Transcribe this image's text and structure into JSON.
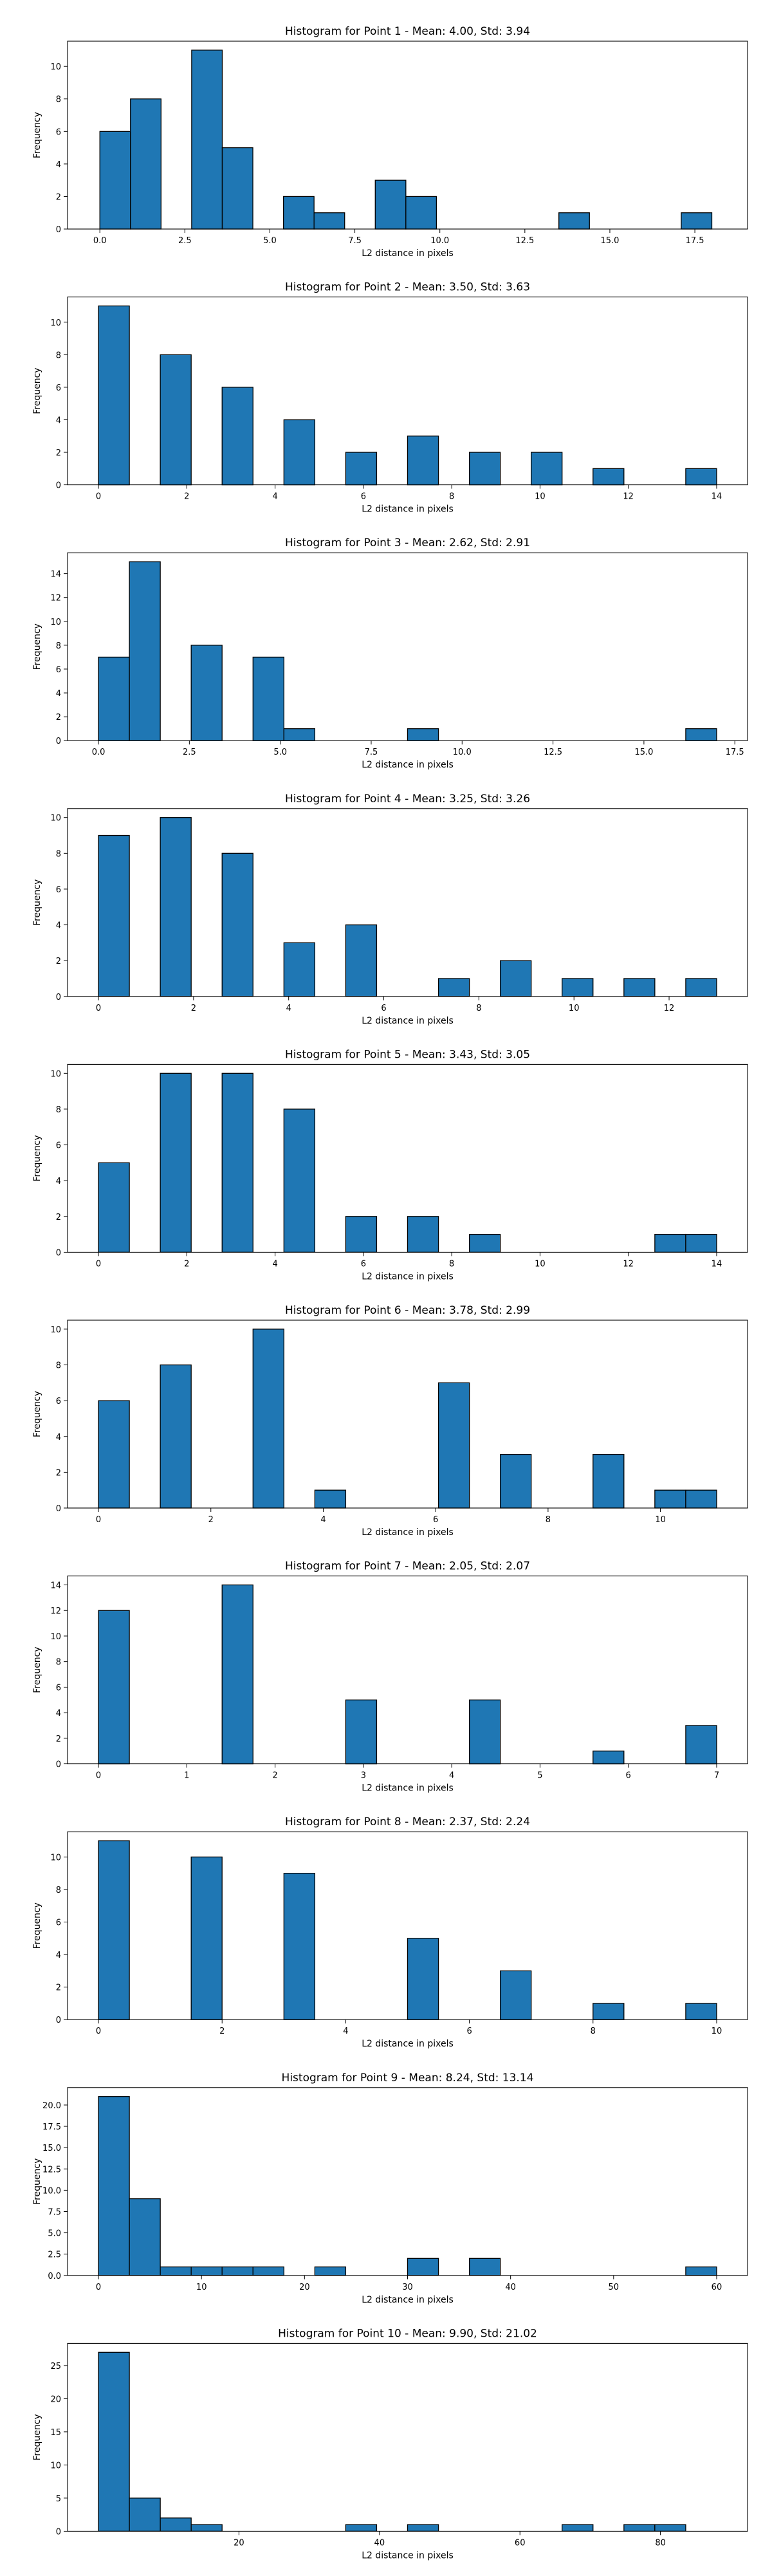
{
  "chart_data": [
    {
      "type": "bar",
      "title": "Histogram for Point 1 - Mean: 4.00, Std: 3.94",
      "xlabel": "L2 distance in pixels",
      "ylabel": "Frequency",
      "xlim": [
        -0.95,
        19.05
      ],
      "ylim": [
        0,
        11.55
      ],
      "xticks": [
        0,
        2.5,
        5,
        7.5,
        10,
        12.5,
        15,
        17.5
      ],
      "xtick_labels": [
        "0.0",
        "2.5",
        "5.0",
        "7.5",
        "10.0",
        "12.5",
        "15.0",
        "17.5"
      ],
      "yticks": [
        0,
        2,
        4,
        6,
        8,
        10
      ],
      "bin_edges": [
        0,
        0.9,
        1.8,
        2.7,
        3.6,
        4.5,
        5.4,
        6.3,
        7.2,
        8.1,
        9.0,
        9.9,
        10.8,
        11.7,
        12.6,
        13.5,
        14.4,
        15.3,
        16.2,
        17.1,
        18.0
      ],
      "counts": [
        6,
        8,
        0,
        11,
        5,
        0,
        2,
        1,
        0,
        3,
        2,
        0,
        0,
        0,
        0,
        1,
        0,
        0,
        0,
        1
      ]
    },
    {
      "type": "bar",
      "title": "Histogram for Point 2 - Mean: 3.50, Std: 3.63",
      "xlabel": "L2 distance in pixels",
      "ylabel": "Frequency",
      "xlim": [
        -0.7,
        14.7
      ],
      "ylim": [
        0,
        11.55
      ],
      "xticks": [
        0,
        2,
        4,
        6,
        8,
        10,
        12,
        14
      ],
      "xtick_labels": [
        "0",
        "2",
        "4",
        "6",
        "8",
        "10",
        "12",
        "14"
      ],
      "yticks": [
        0,
        2,
        4,
        6,
        8,
        10
      ],
      "bin_edges": [
        0,
        0.7,
        1.4,
        2.1,
        2.8,
        3.5,
        4.2,
        4.9,
        5.6,
        6.3,
        7.0,
        7.7,
        8.4,
        9.1,
        9.8,
        10.5,
        11.2,
        11.9,
        12.6,
        13.3,
        14.0
      ],
      "counts": [
        11,
        0,
        8,
        0,
        6,
        0,
        4,
        0,
        2,
        0,
        3,
        0,
        2,
        0,
        2,
        0,
        1,
        0,
        0,
        1
      ]
    },
    {
      "type": "bar",
      "title": "Histogram for Point 3 - Mean: 2.62, Std: 2.91",
      "xlabel": "L2 distance in pixels",
      "ylabel": "Frequency",
      "xlim": [
        -0.85,
        17.85
      ],
      "ylim": [
        0,
        15.75
      ],
      "xticks": [
        0,
        2.5,
        5,
        7.5,
        10,
        12.5,
        15,
        17.5
      ],
      "xtick_labels": [
        "0.0",
        "2.5",
        "5.0",
        "7.5",
        "10.0",
        "12.5",
        "15.0",
        "17.5"
      ],
      "yticks": [
        0,
        2,
        4,
        6,
        8,
        10,
        12,
        14
      ],
      "bin_edges": [
        0,
        0.85,
        1.7,
        2.55,
        3.4,
        4.25,
        5.1,
        5.95,
        6.8,
        7.65,
        8.5,
        9.35,
        10.2,
        11.05,
        11.9,
        12.75,
        13.6,
        14.45,
        15.3,
        16.15,
        17.0
      ],
      "counts": [
        7,
        15,
        0,
        8,
        0,
        7,
        1,
        0,
        0,
        0,
        1,
        0,
        0,
        0,
        0,
        0,
        0,
        0,
        0,
        1
      ]
    },
    {
      "type": "bar",
      "title": "Histogram for Point 4 - Mean: 3.25, Std: 3.26",
      "xlabel": "L2 distance in pixels",
      "ylabel": "Frequency",
      "xlim": [
        -0.65,
        13.65
      ],
      "ylim": [
        0,
        10.5
      ],
      "xticks": [
        0,
        2,
        4,
        6,
        8,
        10,
        12
      ],
      "xtick_labels": [
        "0",
        "2",
        "4",
        "6",
        "8",
        "10",
        "12"
      ],
      "yticks": [
        0,
        2,
        4,
        6,
        8,
        10
      ],
      "bin_edges": [
        0,
        0.65,
        1.3,
        1.95,
        2.6,
        3.25,
        3.9,
        4.55,
        5.2,
        5.85,
        6.5,
        7.15,
        7.8,
        8.45,
        9.1,
        9.75,
        10.4,
        11.05,
        11.7,
        12.35,
        13.0
      ],
      "counts": [
        9,
        0,
        10,
        0,
        8,
        0,
        3,
        0,
        4,
        0,
        0,
        1,
        0,
        2,
        0,
        1,
        0,
        1,
        0,
        1
      ]
    },
    {
      "type": "bar",
      "title": "Histogram for Point 5 - Mean: 3.43, Std: 3.05",
      "xlabel": "L2 distance in pixels",
      "ylabel": "Frequency",
      "xlim": [
        -0.7,
        14.7
      ],
      "ylim": [
        0,
        10.5
      ],
      "xticks": [
        0,
        2,
        4,
        6,
        8,
        10,
        12,
        14
      ],
      "xtick_labels": [
        "0",
        "2",
        "4",
        "6",
        "8",
        "10",
        "12",
        "14"
      ],
      "yticks": [
        0,
        2,
        4,
        6,
        8,
        10
      ],
      "bin_edges": [
        0,
        0.7,
        1.4,
        2.1,
        2.8,
        3.5,
        4.2,
        4.9,
        5.6,
        6.3,
        7.0,
        7.7,
        8.4,
        9.1,
        9.8,
        10.5,
        11.2,
        11.9,
        12.6,
        13.3,
        14.0
      ],
      "counts": [
        5,
        0,
        10,
        0,
        10,
        0,
        8,
        0,
        2,
        0,
        2,
        0,
        1,
        0,
        0,
        0,
        0,
        0,
        1,
        1
      ]
    },
    {
      "type": "bar",
      "title": "Histogram for Point 6 - Mean: 3.78, Std: 2.99",
      "xlabel": "L2 distance in pixels",
      "ylabel": "Frequency",
      "xlim": [
        -0.55,
        11.55
      ],
      "ylim": [
        0,
        10.5
      ],
      "xticks": [
        0,
        2,
        4,
        6,
        8,
        10
      ],
      "xtick_labels": [
        "0",
        "2",
        "4",
        "6",
        "8",
        "10"
      ],
      "yticks": [
        0,
        2,
        4,
        6,
        8,
        10
      ],
      "bin_edges": [
        0,
        0.55,
        1.1,
        1.65,
        2.2,
        2.75,
        3.3,
        3.85,
        4.4,
        4.95,
        5.5,
        6.05,
        6.6,
        7.15,
        7.7,
        8.25,
        8.8,
        9.35,
        9.9,
        10.45,
        11.0
      ],
      "counts": [
        6,
        0,
        8,
        0,
        0,
        10,
        0,
        1,
        0,
        0,
        0,
        7,
        0,
        3,
        0,
        0,
        3,
        0,
        1,
        1
      ]
    },
    {
      "type": "bar",
      "title": "Histogram for Point 7 - Mean: 2.05, Std: 2.07",
      "xlabel": "L2 distance in pixels",
      "ylabel": "Frequency",
      "xlim": [
        -0.35,
        7.35
      ],
      "ylim": [
        0,
        14.7
      ],
      "xticks": [
        0,
        1,
        2,
        3,
        4,
        5,
        6,
        7
      ],
      "xtick_labels": [
        "0",
        "1",
        "2",
        "3",
        "4",
        "5",
        "6",
        "7"
      ],
      "yticks": [
        0,
        2,
        4,
        6,
        8,
        10,
        12,
        14
      ],
      "bin_edges": [
        0,
        0.35,
        0.7,
        1.05,
        1.4,
        1.75,
        2.1,
        2.45,
        2.8,
        3.15,
        3.5,
        3.85,
        4.2,
        4.55,
        4.9,
        5.25,
        5.6,
        5.95,
        6.3,
        6.65,
        7.0
      ],
      "counts": [
        12,
        0,
        0,
        0,
        14,
        0,
        0,
        0,
        5,
        0,
        0,
        0,
        5,
        0,
        0,
        0,
        1,
        0,
        0,
        3
      ]
    },
    {
      "type": "bar",
      "title": "Histogram for Point 8 - Mean: 2.37, Std: 2.24",
      "xlabel": "L2 distance in pixels",
      "ylabel": "Frequency",
      "xlim": [
        -0.5,
        10.5
      ],
      "ylim": [
        0,
        11.55
      ],
      "xticks": [
        0,
        2,
        4,
        6,
        8,
        10
      ],
      "xtick_labels": [
        "0",
        "2",
        "4",
        "6",
        "8",
        "10"
      ],
      "yticks": [
        0,
        2,
        4,
        6,
        8,
        10
      ],
      "bin_edges": [
        0,
        0.5,
        1.0,
        1.5,
        2.0,
        2.5,
        3.0,
        3.5,
        4.0,
        4.5,
        5.0,
        5.5,
        6.0,
        6.5,
        7.0,
        7.5,
        8.0,
        8.5,
        9.0,
        9.5,
        10.0
      ],
      "counts": [
        11,
        0,
        0,
        10,
        0,
        0,
        9,
        0,
        0,
        0,
        5,
        0,
        0,
        3,
        0,
        0,
        1,
        0,
        0,
        1
      ]
    },
    {
      "type": "bar",
      "title": "Histogram for Point 9 - Mean: 8.24, Std: 13.14",
      "xlabel": "L2 distance in pixels",
      "ylabel": "Frequency",
      "xlim": [
        -3.0,
        63.0
      ],
      "ylim": [
        0,
        22.05
      ],
      "xticks": [
        0,
        10,
        20,
        30,
        40,
        50,
        60
      ],
      "xtick_labels": [
        "0",
        "10",
        "20",
        "30",
        "40",
        "50",
        "60"
      ],
      "yticks": [
        0,
        2.5,
        5,
        7.5,
        10,
        12.5,
        15,
        17.5,
        20
      ],
      "ytick_labels": [
        "0.0",
        "2.5",
        "5.0",
        "7.5",
        "10.0",
        "12.5",
        "15.0",
        "17.5",
        "20.0"
      ],
      "bin_edges": [
        0,
        3,
        6,
        9,
        12,
        15,
        18,
        21,
        24,
        27,
        30,
        33,
        36,
        39,
        42,
        45,
        48,
        51,
        54,
        57,
        60
      ],
      "counts": [
        21,
        9,
        1,
        1,
        1,
        1,
        0,
        1,
        0,
        0,
        2,
        0,
        2,
        0,
        0,
        0,
        0,
        0,
        0,
        1
      ]
    },
    {
      "type": "bar",
      "title": "Histogram for Point 10 - Mean: 9.90, Std: 21.02",
      "xlabel": "L2 distance in pixels",
      "ylabel": "Frequency",
      "xlim": [
        -4.4,
        92.4
      ],
      "ylim": [
        0,
        28.35
      ],
      "xticks": [
        20,
        40,
        60,
        80
      ],
      "xtick_labels": [
        "20",
        "40",
        "60",
        "80"
      ],
      "yticks": [
        0,
        5,
        10,
        15,
        20,
        25
      ],
      "bin_edges": [
        0,
        4.4,
        8.8,
        13.2,
        17.6,
        22.0,
        26.4,
        30.8,
        35.2,
        39.6,
        44.0,
        48.4,
        52.8,
        57.2,
        61.6,
        66.0,
        70.4,
        74.8,
        79.2,
        83.6,
        88.0
      ],
      "counts": [
        27,
        5,
        2,
        1,
        0,
        0,
        0,
        0,
        1,
        0,
        1,
        0,
        0,
        0,
        0,
        1,
        0,
        1,
        1,
        0
      ]
    }
  ],
  "colors": {
    "bar_fill": "#1f77b4",
    "bar_edge": "#000000",
    "axis": "#000000",
    "text": "#000000",
    "background": "#ffffff"
  }
}
